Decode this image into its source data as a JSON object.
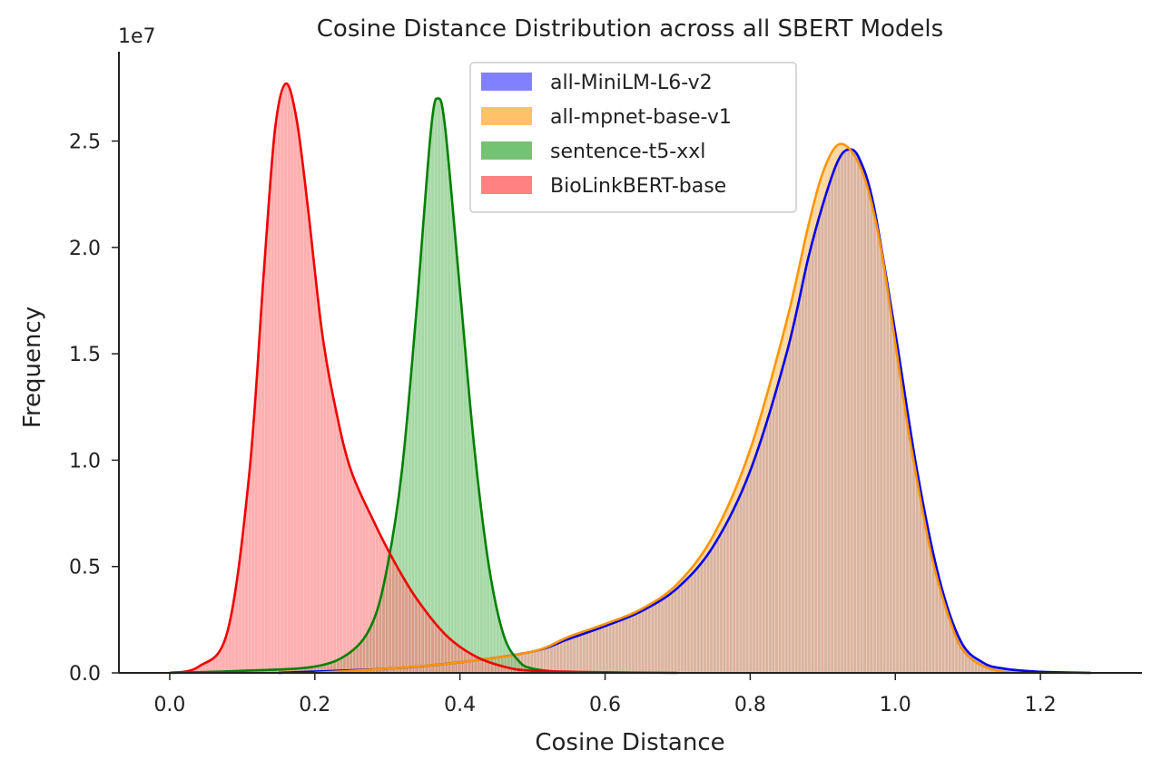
{
  "chart_data": {
    "type": "area",
    "title": "Cosine Distance Distribution across all SBERT Models",
    "xlabel": "Cosine Distance",
    "ylabel": "Frequency",
    "y_offset_label": "1e7",
    "xlim": [
      -0.07,
      1.34
    ],
    "ylim": [
      0,
      2.92
    ],
    "x_ticks": [
      0.0,
      0.2,
      0.4,
      0.6,
      0.8,
      1.0,
      1.2
    ],
    "x_tick_labels": [
      "0.0",
      "0.2",
      "0.4",
      "0.6",
      "0.8",
      "1.0",
      "1.2"
    ],
    "y_ticks": [
      0.0,
      0.5,
      1.0,
      1.5,
      2.0,
      2.5
    ],
    "y_tick_labels": [
      "0.0",
      "0.5",
      "1.0",
      "1.5",
      "2.0",
      "2.5"
    ],
    "grid": false,
    "legend_position": "top-center",
    "series": [
      {
        "name": "all-MiniLM-L6-v2",
        "color": "#0000ee",
        "fill": "#6b6bff",
        "x": [
          0.15,
          0.3,
          0.4,
          0.5,
          0.55,
          0.6,
          0.65,
          0.7,
          0.75,
          0.8,
          0.85,
          0.88,
          0.9,
          0.92,
          0.935,
          0.95,
          0.97,
          1.0,
          1.03,
          1.06,
          1.09,
          1.12,
          1.15,
          1.2,
          1.27
        ],
        "y": [
          0.0,
          0.02,
          0.05,
          0.1,
          0.16,
          0.22,
          0.29,
          0.4,
          0.6,
          0.95,
          1.5,
          1.95,
          2.2,
          2.4,
          2.46,
          2.42,
          2.2,
          1.6,
          0.95,
          0.45,
          0.15,
          0.05,
          0.02,
          0.005,
          0.0
        ]
      },
      {
        "name": "all-mpnet-base-v1",
        "color": "#ff9500",
        "fill": "#ffb74d",
        "x": [
          0.2,
          0.3,
          0.4,
          0.5,
          0.55,
          0.6,
          0.65,
          0.7,
          0.75,
          0.8,
          0.85,
          0.88,
          0.9,
          0.92,
          0.94,
          0.96,
          0.98,
          1.0,
          1.02,
          1.05,
          1.08,
          1.1,
          1.13,
          1.16
        ],
        "y": [
          0.0,
          0.02,
          0.05,
          0.1,
          0.17,
          0.23,
          0.3,
          0.42,
          0.65,
          1.05,
          1.65,
          2.1,
          2.35,
          2.48,
          2.45,
          2.3,
          2.0,
          1.55,
          1.1,
          0.55,
          0.2,
          0.08,
          0.02,
          0.0
        ]
      },
      {
        "name": "sentence-t5-xxl",
        "color": "#008000",
        "fill": "#5cb85c",
        "x": [
          0.0,
          0.1,
          0.2,
          0.25,
          0.28,
          0.3,
          0.32,
          0.34,
          0.36,
          0.37,
          0.38,
          0.4,
          0.42,
          0.44,
          0.46,
          0.48,
          0.5,
          0.55
        ],
        "y": [
          0.0,
          0.01,
          0.03,
          0.1,
          0.24,
          0.5,
          0.95,
          1.7,
          2.55,
          2.7,
          2.55,
          1.8,
          1.05,
          0.5,
          0.18,
          0.06,
          0.02,
          0.0
        ]
      },
      {
        "name": "BioLinkBERT-base",
        "color": "#ee0000",
        "fill": "#ff6b6b",
        "x": [
          0.0,
          0.04,
          0.08,
          0.11,
          0.13,
          0.145,
          0.16,
          0.175,
          0.19,
          0.21,
          0.23,
          0.25,
          0.28,
          0.31,
          0.34,
          0.38,
          0.42,
          0.46,
          0.5,
          0.6,
          0.7
        ],
        "y": [
          0.0,
          0.03,
          0.2,
          0.95,
          1.9,
          2.55,
          2.77,
          2.6,
          2.2,
          1.6,
          1.22,
          0.95,
          0.72,
          0.52,
          0.35,
          0.18,
          0.08,
          0.03,
          0.01,
          0.003,
          0.0
        ]
      }
    ]
  }
}
